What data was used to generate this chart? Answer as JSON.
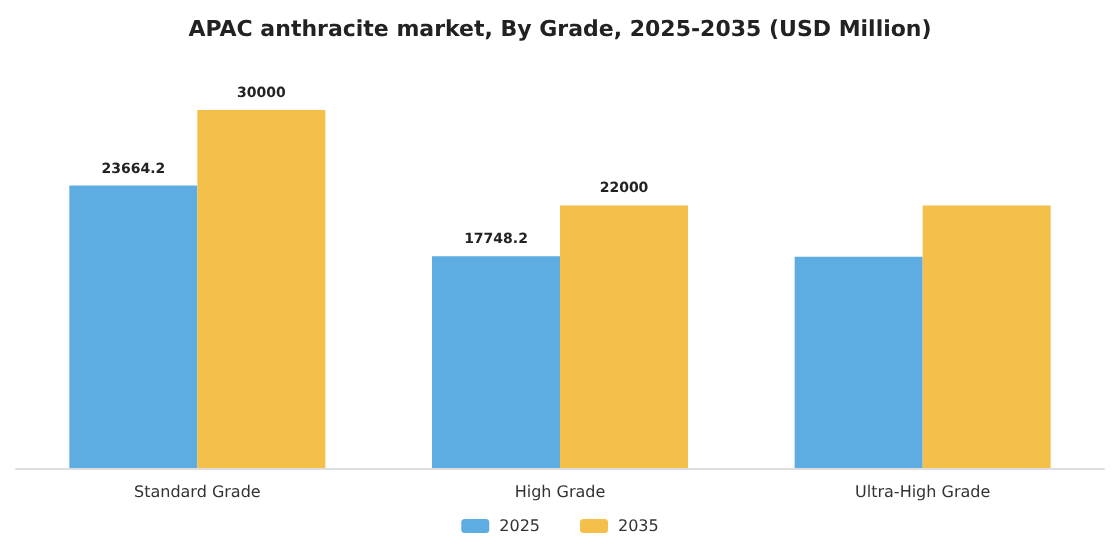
{
  "chart_data": {
    "type": "bar",
    "title": "APAC anthracite market, By Grade, 2025-2035 (USD Million)",
    "categories": [
      "Standard Grade",
      "High Grade",
      "Ultra-High Grade"
    ],
    "series": [
      {
        "name": "2025",
        "color": "#5dade2",
        "values": [
          23664.2,
          17748.2,
          17700
        ],
        "value_labels": [
          "23664.2",
          "17748.2",
          null
        ]
      },
      {
        "name": "2035",
        "color": "#f5c04a",
        "values": [
          30000,
          22000,
          22000
        ],
        "value_labels": [
          "30000",
          "22000",
          null
        ]
      }
    ],
    "ylim": [
      0,
      30000
    ],
    "tick_labels": "x",
    "legend": "bottom"
  }
}
